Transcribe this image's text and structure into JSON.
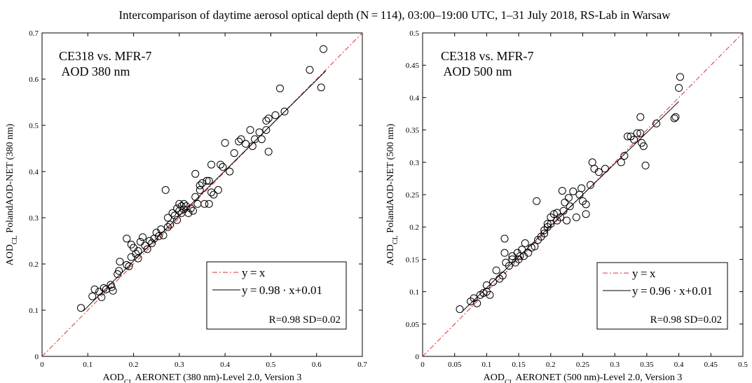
{
  "title": "Intercomparison of daytime aerosol optical depth (N = 114), 03:00–19:00 UTC, 1–31 July 2018, RS-Lab in Warsaw",
  "chart_data": [
    {
      "type": "scatter",
      "annotation": [
        "CE318 vs. MFR-7",
        " AOD 380 nm"
      ],
      "xlabel": {
        "main": "AOD",
        "sub": "CL",
        "rest": "  AERONET (380 nm)-Level 2.0, Version 3"
      },
      "ylabel": {
        "main": "AOD",
        "sub": "CL",
        "rest": "  PolandAOD-NET (380 nm)"
      },
      "xlim": [
        0,
        0.7
      ],
      "ylim": [
        0,
        0.7
      ],
      "xticks": [
        0,
        0.1,
        0.2,
        0.3,
        0.4,
        0.5,
        0.6,
        0.7
      ],
      "yticks": [
        0,
        0.1,
        0.2,
        0.3,
        0.4,
        0.5,
        0.6,
        0.7
      ],
      "xtick_labels": [
        "0",
        "0.1",
        "0.2",
        "0.3",
        "0.4",
        "0.5",
        "0.6",
        "0.7"
      ],
      "ytick_labels": [
        "0",
        "0.1",
        "0.2",
        "0.3",
        "0.4",
        "0.5",
        "0.6",
        "0.7"
      ],
      "grid": false,
      "legend": {
        "placement": "bottom-right",
        "entries": [
          "y = x",
          "y = 0.98 · x+0.01"
        ],
        "stats": "R=0.98  SD=0.02"
      },
      "identity_line": {
        "slope": 1,
        "intercept": 0,
        "color": "#e03030"
      },
      "fit_line": {
        "slope": 0.98,
        "intercept": 0.01,
        "x_range": [
          0.09,
          0.62
        ],
        "color": "#000000"
      },
      "series": [
        {
          "points": [
            [
              0.085,
              0.105
            ],
            [
              0.11,
              0.13
            ],
            [
              0.115,
              0.145
            ],
            [
              0.125,
              0.14
            ],
            [
              0.13,
              0.128
            ],
            [
              0.135,
              0.148
            ],
            [
              0.14,
              0.145
            ],
            [
              0.15,
              0.155
            ],
            [
              0.152,
              0.15
            ],
            [
              0.155,
              0.142
            ],
            [
              0.165,
              0.178
            ],
            [
              0.168,
              0.185
            ],
            [
              0.17,
              0.205
            ],
            [
              0.185,
              0.198
            ],
            [
              0.19,
              0.195
            ],
            [
              0.185,
              0.255
            ],
            [
              0.195,
              0.215
            ],
            [
              0.195,
              0.242
            ],
            [
              0.2,
              0.235
            ],
            [
              0.205,
              0.222
            ],
            [
              0.21,
              0.228
            ],
            [
              0.21,
              0.212
            ],
            [
              0.215,
              0.248
            ],
            [
              0.22,
              0.258
            ],
            [
              0.225,
              0.24
            ],
            [
              0.23,
              0.232
            ],
            [
              0.235,
              0.25
            ],
            [
              0.24,
              0.245
            ],
            [
              0.245,
              0.255
            ],
            [
              0.25,
              0.268
            ],
            [
              0.255,
              0.26
            ],
            [
              0.26,
              0.275
            ],
            [
              0.265,
              0.262
            ],
            [
              0.27,
              0.36
            ],
            [
              0.275,
              0.28
            ],
            [
              0.275,
              0.3
            ],
            [
              0.28,
              0.285
            ],
            [
              0.285,
              0.31
            ],
            [
              0.29,
              0.305
            ],
            [
              0.295,
              0.32
            ],
            [
              0.295,
              0.295
            ],
            [
              0.3,
              0.33
            ],
            [
              0.3,
              0.315
            ],
            [
              0.305,
              0.325
            ],
            [
              0.305,
              0.31
            ],
            [
              0.31,
              0.33
            ],
            [
              0.31,
              0.318
            ],
            [
              0.315,
              0.325
            ],
            [
              0.32,
              0.31
            ],
            [
              0.325,
              0.32
            ],
            [
              0.33,
              0.315
            ],
            [
              0.335,
              0.345
            ],
            [
              0.335,
              0.395
            ],
            [
              0.34,
              0.33
            ],
            [
              0.345,
              0.37
            ],
            [
              0.345,
              0.36
            ],
            [
              0.35,
              0.375
            ],
            [
              0.355,
              0.33
            ],
            [
              0.36,
              0.38
            ],
            [
              0.365,
              0.38
            ],
            [
              0.365,
              0.33
            ],
            [
              0.37,
              0.355
            ],
            [
              0.37,
              0.415
            ],
            [
              0.375,
              0.35
            ],
            [
              0.385,
              0.36
            ],
            [
              0.39,
              0.415
            ],
            [
              0.395,
              0.41
            ],
            [
              0.4,
              0.462
            ],
            [
              0.41,
              0.4
            ],
            [
              0.42,
              0.44
            ],
            [
              0.43,
              0.465
            ],
            [
              0.435,
              0.47
            ],
            [
              0.445,
              0.46
            ],
            [
              0.455,
              0.49
            ],
            [
              0.46,
              0.455
            ],
            [
              0.465,
              0.47
            ],
            [
              0.475,
              0.485
            ],
            [
              0.48,
              0.47
            ],
            [
              0.49,
              0.49
            ],
            [
              0.49,
              0.51
            ],
            [
              0.495,
              0.443
            ],
            [
              0.495,
              0.515
            ],
            [
              0.51,
              0.522
            ],
            [
              0.52,
              0.58
            ],
            [
              0.53,
              0.53
            ],
            [
              0.585,
              0.62
            ],
            [
              0.61,
              0.582
            ],
            [
              0.615,
              0.665
            ]
          ]
        }
      ]
    },
    {
      "type": "scatter",
      "annotation": [
        "CE318 vs. MFR-7",
        " AOD 500 nm"
      ],
      "xlabel": {
        "main": "AOD",
        "sub": "CL",
        "rest": "  AERONET (500 nm)-Level 2.0, Version 3"
      },
      "ylabel": {
        "main": "AOD",
        "sub": "CL",
        "rest": "  PolandAOD-NET (500 nm)"
      },
      "xlim": [
        0,
        0.5
      ],
      "ylim": [
        0,
        0.5
      ],
      "xticks": [
        0,
        0.05,
        0.1,
        0.15,
        0.2,
        0.25,
        0.3,
        0.35,
        0.4,
        0.45,
        0.5
      ],
      "yticks": [
        0,
        0.05,
        0.1,
        0.15,
        0.2,
        0.25,
        0.3,
        0.35,
        0.4,
        0.45,
        0.5
      ],
      "xtick_labels": [
        "0",
        "0.05",
        "0.1",
        "0.15",
        "0.2",
        "0.25",
        "0.3",
        "0.35",
        "0.4",
        "0.45",
        "0.5"
      ],
      "ytick_labels": [
        "0",
        "0.05",
        "0.1",
        "0.15",
        "0.2",
        "0.25",
        "0.3",
        "0.35",
        "0.4",
        "0.45",
        "0.5"
      ],
      "grid": false,
      "legend": {
        "placement": "bottom-right",
        "entries": [
          "y = x",
          "y = 0.96 · x+0.01"
        ],
        "stats": "R=0.98  SD=0.02"
      },
      "identity_line": {
        "slope": 1,
        "intercept": 0,
        "color": "#e03030"
      },
      "fit_line": {
        "slope": 0.96,
        "intercept": 0.01,
        "x_range": [
          0.06,
          0.4
        ],
        "color": "#000000"
      },
      "series": [
        {
          "points": [
            [
              0.058,
              0.073
            ],
            [
              0.075,
              0.085
            ],
            [
              0.08,
              0.09
            ],
            [
              0.085,
              0.082
            ],
            [
              0.09,
              0.095
            ],
            [
              0.095,
              0.098
            ],
            [
              0.1,
              0.1
            ],
            [
              0.1,
              0.11
            ],
            [
              0.105,
              0.095
            ],
            [
              0.11,
              0.115
            ],
            [
              0.115,
              0.133
            ],
            [
              0.12,
              0.12
            ],
            [
              0.125,
              0.125
            ],
            [
              0.128,
              0.16
            ],
            [
              0.128,
              0.182
            ],
            [
              0.13,
              0.145
            ],
            [
              0.135,
              0.14
            ],
            [
              0.14,
              0.15
            ],
            [
              0.14,
              0.155
            ],
            [
              0.145,
              0.145
            ],
            [
              0.148,
              0.16
            ],
            [
              0.15,
              0.15
            ],
            [
              0.152,
              0.155
            ],
            [
              0.155,
              0.165
            ],
            [
              0.158,
              0.155
            ],
            [
              0.16,
              0.175
            ],
            [
              0.165,
              0.16
            ],
            [
              0.17,
              0.168
            ],
            [
              0.175,
              0.17
            ],
            [
              0.178,
              0.24
            ],
            [
              0.18,
              0.18
            ],
            [
              0.185,
              0.185
            ],
            [
              0.19,
              0.195
            ],
            [
              0.19,
              0.19
            ],
            [
              0.195,
              0.205
            ],
            [
              0.195,
              0.2
            ],
            [
              0.2,
              0.215
            ],
            [
              0.2,
              0.205
            ],
            [
              0.205,
              0.22
            ],
            [
              0.21,
              0.21
            ],
            [
              0.21,
              0.222
            ],
            [
              0.215,
              0.215
            ],
            [
              0.218,
              0.256
            ],
            [
              0.22,
              0.225
            ],
            [
              0.222,
              0.238
            ],
            [
              0.225,
              0.21
            ],
            [
              0.228,
              0.245
            ],
            [
              0.23,
              0.232
            ],
            [
              0.235,
              0.255
            ],
            [
              0.24,
              0.215
            ],
            [
              0.245,
              0.25
            ],
            [
              0.248,
              0.26
            ],
            [
              0.25,
              0.24
            ],
            [
              0.255,
              0.22
            ],
            [
              0.255,
              0.235
            ],
            [
              0.262,
              0.265
            ],
            [
              0.265,
              0.3
            ],
            [
              0.268,
              0.29
            ],
            [
              0.275,
              0.285
            ],
            [
              0.285,
              0.29
            ],
            [
              0.31,
              0.3
            ],
            [
              0.315,
              0.31
            ],
            [
              0.32,
              0.34
            ],
            [
              0.325,
              0.34
            ],
            [
              0.33,
              0.335
            ],
            [
              0.335,
              0.345
            ],
            [
              0.34,
              0.37
            ],
            [
              0.34,
              0.345
            ],
            [
              0.342,
              0.33
            ],
            [
              0.345,
              0.325
            ],
            [
              0.348,
              0.295
            ],
            [
              0.365,
              0.36
            ],
            [
              0.393,
              0.368
            ],
            [
              0.395,
              0.37
            ],
            [
              0.4,
              0.415
            ],
            [
              0.402,
              0.432
            ]
          ]
        }
      ]
    }
  ]
}
